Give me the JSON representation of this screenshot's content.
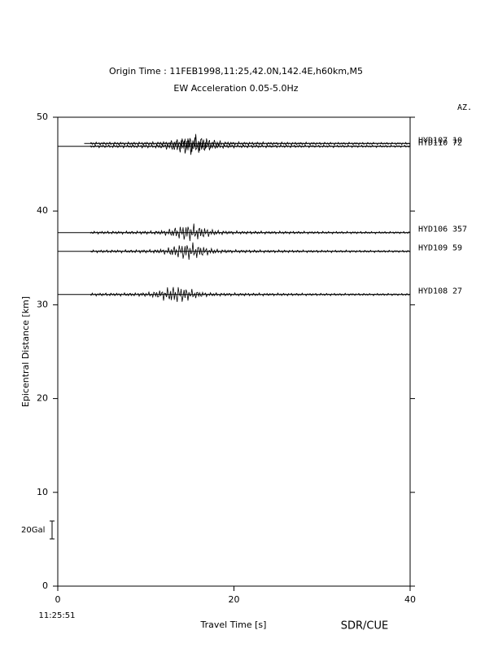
{
  "chart_data": {
    "type": "record-section",
    "title": "Origin Time : 11FEB1998,11:25,42.0N,142.4E,h60km,M5",
    "subtitle": "EW Acceleration 0.05-5.0Hz",
    "xlabel": "Travel Time [s]",
    "ylabel": "Epicentral Distance [km]",
    "azimuth_header": "AZ.",
    "origin_label": "11:25:51",
    "scale_label": "20Gal",
    "footer": "SDR/CUE",
    "xlim": [
      0,
      40
    ],
    "xticks": [
      0,
      20,
      40
    ],
    "ylim": [
      0,
      50
    ],
    "yticks": [
      0,
      10,
      20,
      30,
      40,
      50
    ],
    "color": "#000000",
    "traces": [
      {
        "name": "HYD107",
        "azimuth": 10,
        "distance": 47.2,
        "start": 3,
        "peak": 15.5
      },
      {
        "name": "HYD110",
        "azimuth": 72,
        "distance": 46.9,
        "start": 0,
        "peak": 15
      },
      {
        "name": "HYD106",
        "azimuth": 357,
        "distance": 37.7,
        "start": 0,
        "peak": 15
      },
      {
        "name": "HYD109",
        "azimuth": 59,
        "distance": 35.7,
        "start": 0,
        "peak": 14.8
      },
      {
        "name": "HYD108",
        "azimuth": 27,
        "distance": 31.1,
        "start": 0,
        "peak": 13.5
      }
    ]
  }
}
